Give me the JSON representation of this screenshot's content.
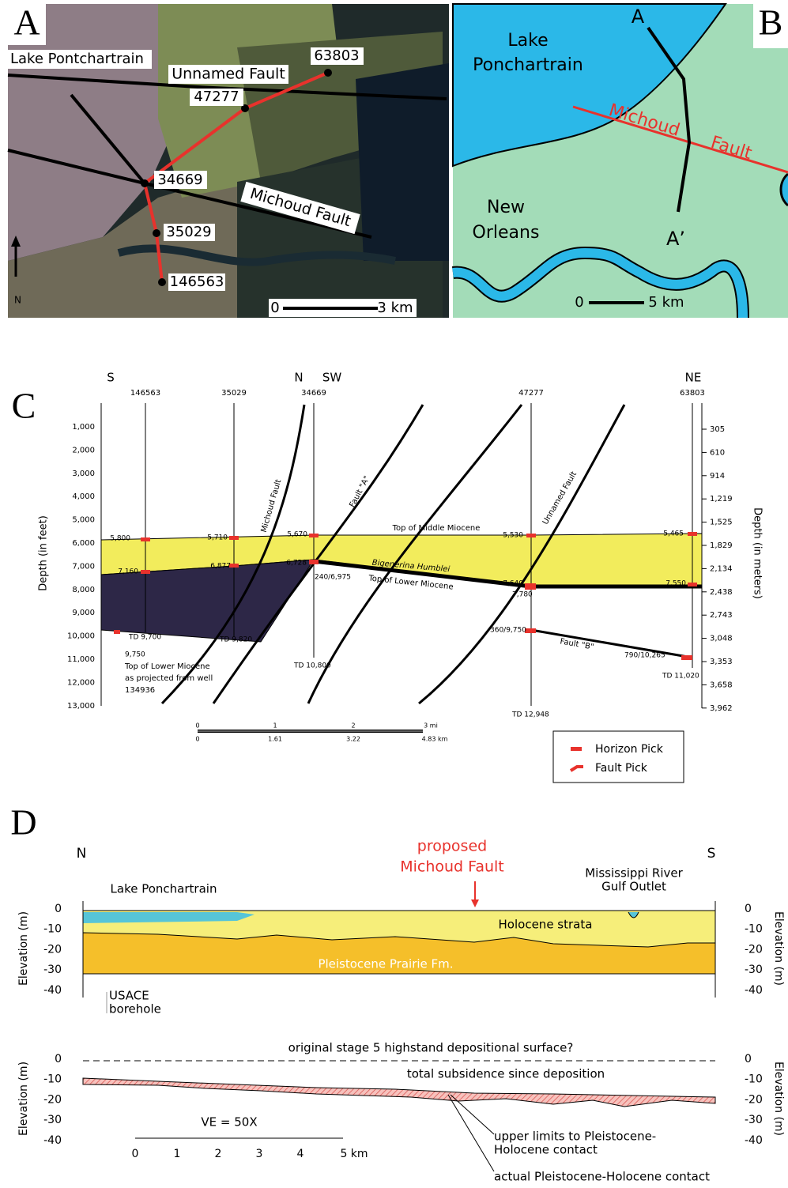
{
  "panel_a": {
    "letter": "A",
    "lake": "Lake Pontchartrain",
    "unnamed_fault": "Unnamed Fault",
    "michoud_fault": "Michoud Fault",
    "wells": [
      "63803",
      "47277",
      "34669",
      "35029",
      "146563"
    ],
    "north": "N",
    "scale": [
      "0",
      "3 km"
    ]
  },
  "panel_b": {
    "letter": "B",
    "lake": [
      "Lake",
      "Ponchartrain"
    ],
    "city": [
      "New",
      "Orleans"
    ],
    "fault": [
      "Michoud",
      "Fault"
    ],
    "section_start": "A",
    "section_end": "A’",
    "scale": [
      "0",
      "5 km"
    ]
  },
  "panel_c": {
    "letter": "C",
    "directions": [
      "S",
      "N",
      "SW",
      "NE"
    ],
    "wells": [
      "146563",
      "35029",
      "34669",
      "47277",
      "63803"
    ],
    "feet_axis_label": "Depth (in feet)",
    "meters_axis_label": "Depth (in meters)",
    "feet_ticks": [
      "1,000",
      "2,000",
      "3,000",
      "4,000",
      "5,000",
      "6,000",
      "7,000",
      "8,000",
      "9,000",
      "10,000",
      "11,000",
      "12,000",
      "13,000"
    ],
    "meter_ticks": [
      "305",
      "610",
      "914",
      "1,219",
      "1,525",
      "1,829",
      "2,134",
      "2,438",
      "2,743",
      "3,048",
      "3,353",
      "3,658",
      "3,962"
    ],
    "faults": [
      "Michoud Fault",
      "Fault \"A\"",
      "Unnamed Fault",
      "Fault \"B\""
    ],
    "horizons": [
      "Top of Middle Miocene",
      "Bigenerina Humblei",
      "Top of Lower Miocene"
    ],
    "picks": [
      "5,800",
      "5,710",
      "5,670",
      "5,530",
      "5,465",
      "7,160",
      "6,877",
      "6,728",
      "240/6,975",
      "7,640",
      "7,780",
      "7,550",
      "TD 9,700",
      "TD 9,820",
      "9,750",
      "TD 10,800",
      "360/9,750",
      "790/10,265",
      "TD 11,020",
      "TD 12,948"
    ],
    "note": [
      "Top of Lower Miocene",
      "as projected from well",
      "134936"
    ],
    "scale_miles": [
      "0",
      "1",
      "2",
      "3 mi"
    ],
    "scale_km": [
      "0",
      "1.61",
      "3.22",
      "4.83 km"
    ],
    "legend": [
      "Horizon Pick",
      "Fault Pick"
    ]
  },
  "panel_d": {
    "letter": "D",
    "directions": [
      "N",
      "S"
    ],
    "proposed": [
      "proposed",
      "Michoud Fault"
    ],
    "lake": "Lake Ponchartrain",
    "outlet": [
      "Mississippi River",
      "Gulf Outlet"
    ],
    "holocene": "Holocene strata",
    "pleistocene": "Pleistocene Prairie Fm.",
    "borehole": [
      "USACE",
      "borehole"
    ],
    "elevation_labels": [
      "Elevation (m)",
      "Elevation (m)",
      "Elevation (m)",
      "Elevation (m)"
    ],
    "upper_left_ticks": [
      "0",
      "-10",
      "-20",
      "-30",
      "-40"
    ],
    "upper_right_ticks": [
      "0",
      "-10",
      "-20",
      "-30",
      "-40"
    ],
    "lower_left_ticks": [
      "0",
      "-10",
      "-20",
      "-30",
      "-40"
    ],
    "lower_right_ticks": [
      "0",
      "-10",
      "-20",
      "-30",
      "-40"
    ],
    "surface": "original stage 5 highstand depositional surface?",
    "subsidence": "total subsidence since deposition",
    "ve": "VE = 50X",
    "scale": [
      "0",
      "1",
      "2",
      "3",
      "4",
      "5 km"
    ],
    "upper_limits": [
      "upper limits to Pleistocene-",
      "Holocene contact"
    ],
    "actual": "actual Pleistocene-Holocene contact"
  }
}
